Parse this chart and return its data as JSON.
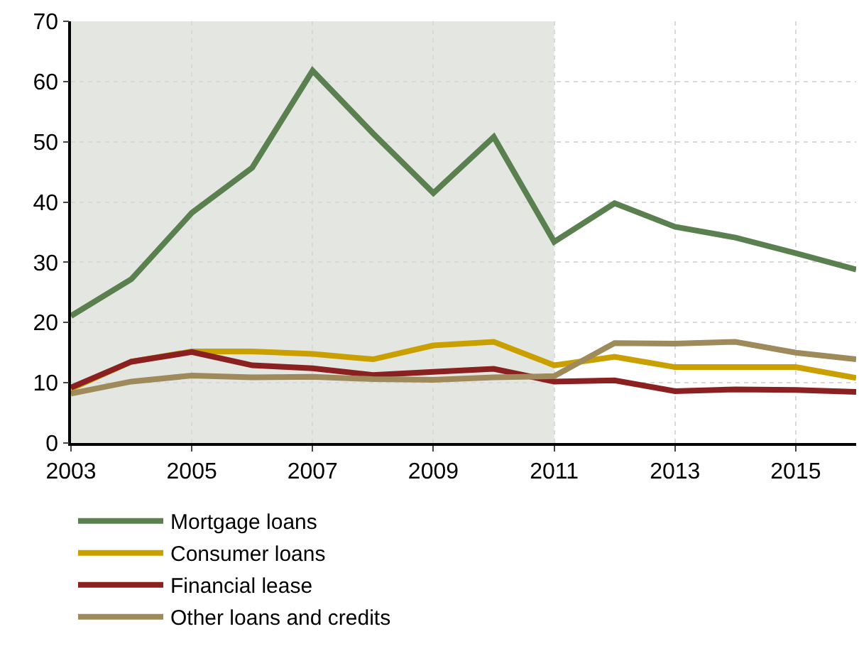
{
  "chart_data": {
    "type": "line",
    "x": [
      2003,
      2004,
      2005,
      2006,
      2007,
      2008,
      2009,
      2010,
      2011,
      2012,
      2013,
      2014,
      2015,
      2016
    ],
    "series": [
      {
        "name": "Mortgage loans",
        "color": "#5a8050",
        "values": [
          21.1,
          27.2,
          38.2,
          45.7,
          61.8,
          51.4,
          41.5,
          50.8,
          33.4,
          39.8,
          35.9,
          34.1,
          31.5,
          28.8
        ]
      },
      {
        "name": "Consumer loans",
        "color": "#c9a000",
        "values": [
          9.0,
          13.5,
          15.2,
          15.2,
          14.8,
          13.9,
          16.2,
          16.8,
          12.9,
          14.3,
          12.6,
          12.6,
          12.6,
          10.8
        ]
      },
      {
        "name": "Financial lease",
        "color": "#8b2020",
        "values": [
          9.2,
          13.5,
          15.1,
          12.9,
          12.4,
          11.3,
          11.8,
          12.3,
          10.2,
          10.4,
          8.6,
          8.9,
          8.8,
          8.5
        ]
      },
      {
        "name": "Other loans and credits",
        "color": "#9e8a5a",
        "values": [
          8.2,
          10.2,
          11.2,
          10.9,
          11.0,
          10.6,
          10.5,
          10.9,
          11.1,
          16.6,
          16.5,
          16.8,
          15.0,
          13.9
        ]
      }
    ],
    "xlim": [
      2003,
      2016
    ],
    "xticks": [
      2003,
      2005,
      2007,
      2009,
      2011,
      2013,
      2015
    ],
    "ylim": [
      0,
      70
    ],
    "yticks": [
      0,
      10,
      20,
      30,
      40,
      50,
      60,
      70
    ],
    "grid": true,
    "legend": "bottom left",
    "marker": "none",
    "line_style": "solid",
    "bands": [
      {
        "axis": "x",
        "from": 2003,
        "to": 2011,
        "color": "#e4e6e2"
      }
    ]
  }
}
